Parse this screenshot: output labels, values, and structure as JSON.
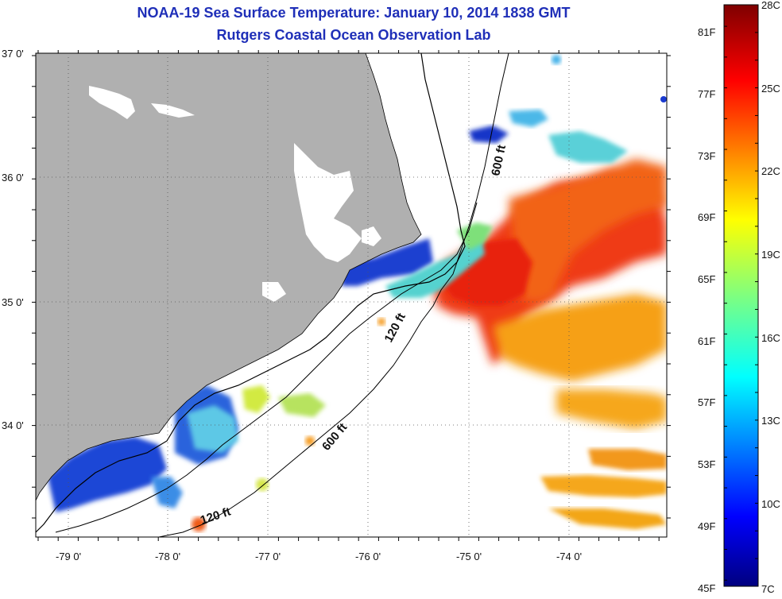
{
  "title": {
    "line1": "NOAA-19 Sea Surface Temperature:  January 10, 2014 1838 GMT",
    "line2": "Rutgers Coastal Ocean Observation Lab"
  },
  "map": {
    "lon_range": [
      -79.3,
      -73.0
    ],
    "lat_range": [
      33.2,
      37.0
    ],
    "lon_tick_labels": [
      "-79 0'",
      "-78 0'",
      "-77 0'",
      "-76 0'",
      "-75 0'",
      "-74 0'"
    ],
    "lat_tick_labels": [
      "37 0'",
      "36 0'",
      "35 0'",
      "34 0'"
    ],
    "grid": "dotted",
    "colors": {
      "land": "#b0b0b0",
      "ocean_no_data": "#ffffff",
      "coastline": "#000000",
      "bathymetry": "#000000"
    },
    "contour_labels": [
      "600 ft",
      "120 ft",
      "600 ft",
      "120 ft"
    ]
  },
  "colorbar": {
    "scale_min_celsius": 7,
    "scale_max_celsius": 28,
    "celsius_labels": [
      "28C",
      "25C",
      "22C",
      "19C",
      "16C",
      "13C",
      "10C",
      "7C"
    ],
    "fahrenheit_labels": [
      "81F",
      "77F",
      "73F",
      "69F",
      "65F",
      "61F",
      "57F",
      "53F",
      "49F",
      "45F"
    ],
    "colormap": "jet"
  }
}
